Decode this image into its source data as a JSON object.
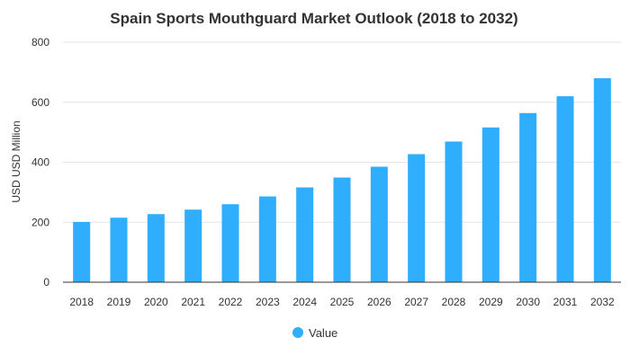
{
  "chart_data": {
    "type": "bar",
    "title": "Spain Sports Mouthguard Market Outlook (2018 to 2032)",
    "xlabel": "",
    "ylabel": "USD USD Million",
    "categories": [
      "2018",
      "2019",
      "2020",
      "2021",
      "2022",
      "2023",
      "2024",
      "2025",
      "2026",
      "2027",
      "2028",
      "2029",
      "2030",
      "2031",
      "2032"
    ],
    "series": [
      {
        "name": "Value",
        "color": "#2eaefc",
        "values": [
          201,
          215,
          227,
          242,
          260,
          286,
          316,
          349,
          385,
          427,
          469,
          516,
          564,
          620,
          680
        ]
      }
    ],
    "ylim": [
      0,
      800
    ],
    "yticks": [
      0,
      200,
      400,
      600,
      800
    ],
    "grid": true,
    "legend_position": "bottom-center"
  },
  "colors": {
    "bar": "#2eaefc",
    "grid": "#e6e6e6",
    "axis": "#333333",
    "text": "#333333"
  }
}
